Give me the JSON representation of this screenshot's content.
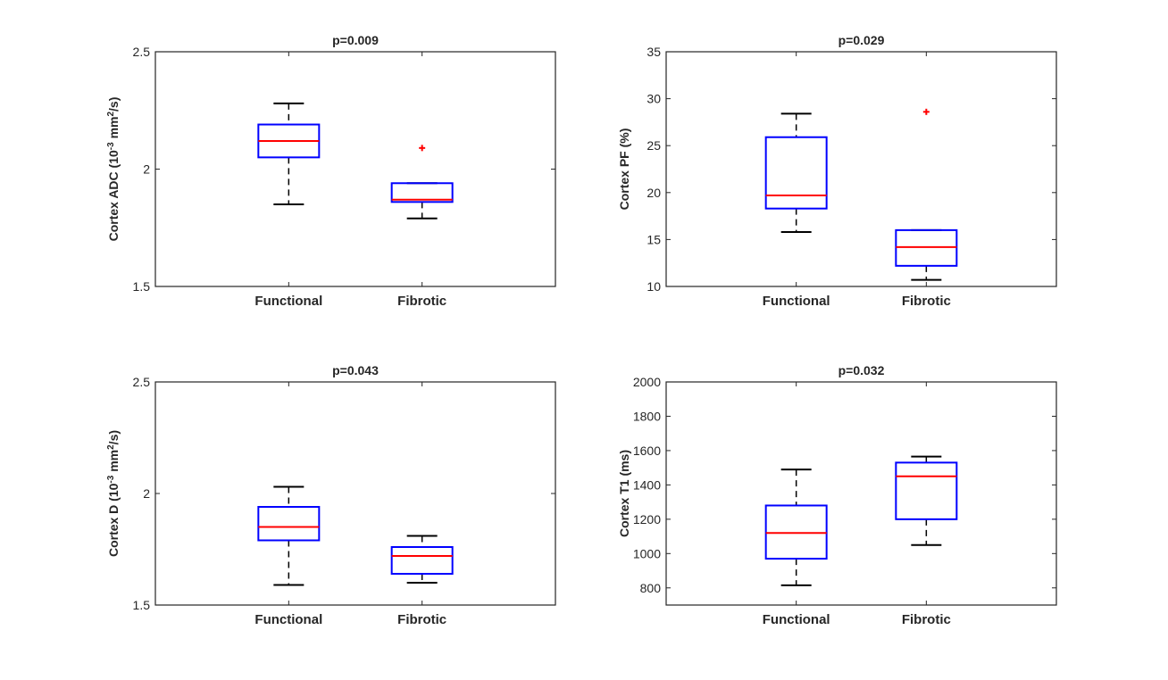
{
  "colors": {
    "box": "#0000ff",
    "median": "#ff0000",
    "whisker": "#000000",
    "outlier": "#ff0000",
    "axes": "#262626"
  },
  "chart_data": [
    {
      "type": "box",
      "title": "p=0.009",
      "ylabel": "Cortex ADC (10^-3 mm^2/s)",
      "ylim": [
        1.5,
        2.5
      ],
      "yticks": [
        "1.5",
        "2",
        "2.5"
      ],
      "ytick_values": [
        1.5,
        2.0,
        2.5
      ],
      "categories": [
        "Functional",
        "Fibrotic"
      ],
      "boxes": [
        {
          "q1": 2.05,
          "median": 2.12,
          "q3": 2.19,
          "whisker_low": 1.85,
          "whisker_high": 2.28,
          "outliers": []
        },
        {
          "q1": 1.86,
          "median": 1.87,
          "q3": 1.94,
          "whisker_low": 1.79,
          "whisker_high": 1.94,
          "outliers": [
            2.09
          ]
        }
      ]
    },
    {
      "type": "box",
      "title": "p=0.029",
      "ylabel": "Cortex PF (%)",
      "ylim": [
        10,
        35
      ],
      "yticks": [
        "10",
        "15",
        "20",
        "25",
        "30",
        "35"
      ],
      "ytick_values": [
        10,
        15,
        20,
        25,
        30,
        35
      ],
      "categories": [
        "Functional",
        "Fibrotic"
      ],
      "boxes": [
        {
          "q1": 18.3,
          "median": 19.7,
          "q3": 25.9,
          "whisker_low": 15.8,
          "whisker_high": 28.4,
          "outliers": []
        },
        {
          "q1": 12.2,
          "median": 14.2,
          "q3": 16.0,
          "whisker_low": 10.7,
          "whisker_high": 16.0,
          "outliers": [
            28.6
          ]
        }
      ]
    },
    {
      "type": "box",
      "title": "p=0.043",
      "ylabel": "Cortex D (10^-3 mm^2/s)",
      "ylim": [
        1.5,
        2.5
      ],
      "yticks": [
        "1.5",
        "2",
        "2.5"
      ],
      "ytick_values": [
        1.5,
        2.0,
        2.5
      ],
      "categories": [
        "Functional",
        "Fibrotic"
      ],
      "boxes": [
        {
          "q1": 1.79,
          "median": 1.85,
          "q3": 1.94,
          "whisker_low": 1.59,
          "whisker_high": 2.03,
          "outliers": []
        },
        {
          "q1": 1.64,
          "median": 1.72,
          "q3": 1.76,
          "whisker_low": 1.6,
          "whisker_high": 1.81,
          "outliers": []
        }
      ]
    },
    {
      "type": "box",
      "title": "p=0.032",
      "ylabel": "Cortex T1 (ms)",
      "ylim": [
        700,
        2000
      ],
      "yticks": [
        "800",
        "1000",
        "1200",
        "1400",
        "1600",
        "1800",
        "2000"
      ],
      "ytick_values": [
        800,
        1000,
        1200,
        1400,
        1600,
        1800,
        2000
      ],
      "categories": [
        "Functional",
        "Fibrotic"
      ],
      "boxes": [
        {
          "q1": 970,
          "median": 1120,
          "q3": 1280,
          "whisker_low": 815,
          "whisker_high": 1490,
          "outliers": []
        },
        {
          "q1": 1200,
          "median": 1450,
          "q3": 1530,
          "whisker_low": 1050,
          "whisker_high": 1565,
          "outliers": []
        }
      ]
    }
  ]
}
